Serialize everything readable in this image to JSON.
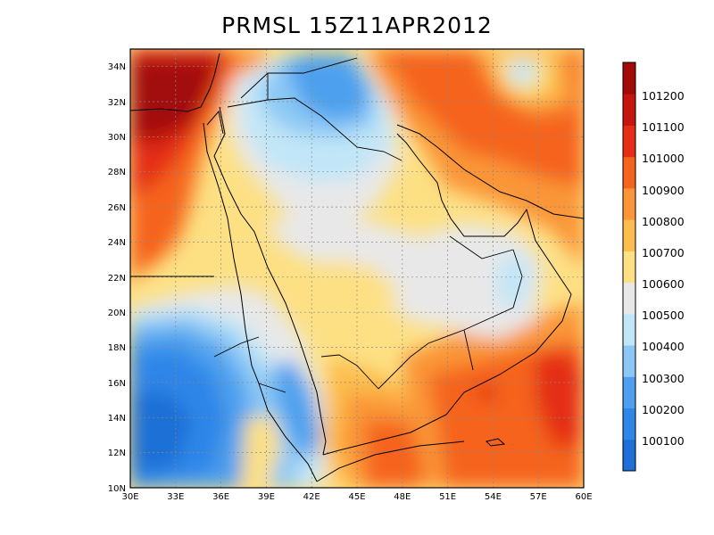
{
  "title": "PRMSL 15Z11APR2012",
  "map": {
    "lon_range": [
      30,
      60
    ],
    "lat_range": [
      10,
      35
    ],
    "x_ticks": [
      "30E",
      "33E",
      "36E",
      "39E",
      "42E",
      "45E",
      "48E",
      "51E",
      "54E",
      "57E",
      "60E"
    ],
    "y_ticks": [
      "10N",
      "12N",
      "14N",
      "16N",
      "18N",
      "20N",
      "22N",
      "24N",
      "26N",
      "28N",
      "30N",
      "32N",
      "34N"
    ],
    "grid": "dotted"
  },
  "colorbar": {
    "labels": [
      "100100",
      "100200",
      "100300",
      "100400",
      "100500",
      "100600",
      "100700",
      "100800",
      "100900",
      "101000",
      "101100",
      "101200"
    ],
    "colors": [
      "#1e6fd6",
      "#2f86e8",
      "#4ea0ee",
      "#8cc8f5",
      "#c1e6f7",
      "#e8e8e8",
      "#fde084",
      "#fcbd4e",
      "#fa9638",
      "#f5641e",
      "#e42d14",
      "#c5150f",
      "#a20a0a"
    ]
  }
}
